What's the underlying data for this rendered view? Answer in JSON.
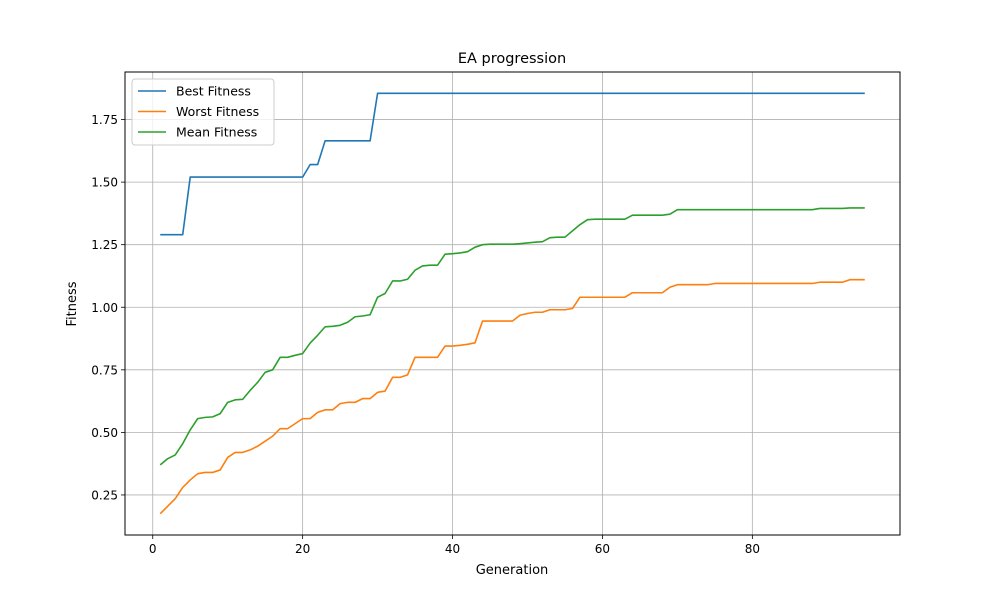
{
  "chart_data": {
    "type": "line",
    "title": "EA progression",
    "xlabel": "Generation",
    "ylabel": "Fitness",
    "xlim": [
      -3.7,
      99.7
    ],
    "ylim": [
      0.09,
      1.94
    ],
    "xticks": [
      0,
      20,
      40,
      60,
      80
    ],
    "yticks": [
      0.25,
      0.5,
      0.75,
      1.0,
      1.25,
      1.5,
      1.75
    ],
    "grid": true,
    "legend_position": "top-left",
    "series": [
      {
        "name": "Best Fitness",
        "color": "#1f77b4",
        "points": [
          [
            1,
            1.29
          ],
          [
            4,
            1.29
          ],
          [
            5,
            1.52
          ],
          [
            20,
            1.52
          ],
          [
            21,
            1.57
          ],
          [
            22,
            1.57
          ],
          [
            23,
            1.665
          ],
          [
            29,
            1.665
          ],
          [
            30,
            1.855
          ],
          [
            95,
            1.855
          ]
        ]
      },
      {
        "name": "Worst Fitness",
        "color": "#ff7f0e",
        "points": [
          [
            1,
            0.175
          ],
          [
            2,
            0.205
          ],
          [
            3,
            0.235
          ],
          [
            4,
            0.28
          ],
          [
            5,
            0.31
          ],
          [
            6,
            0.335
          ],
          [
            7,
            0.34
          ],
          [
            8,
            0.34
          ],
          [
            9,
            0.35
          ],
          [
            10,
            0.4
          ],
          [
            11,
            0.42
          ],
          [
            12,
            0.42
          ],
          [
            13,
            0.43
          ],
          [
            14,
            0.445
          ],
          [
            15,
            0.465
          ],
          [
            16,
            0.485
          ],
          [
            17,
            0.515
          ],
          [
            18,
            0.515
          ],
          [
            19,
            0.535
          ],
          [
            20,
            0.555
          ],
          [
            21,
            0.555
          ],
          [
            22,
            0.58
          ],
          [
            23,
            0.59
          ],
          [
            24,
            0.59
          ],
          [
            25,
            0.615
          ],
          [
            26,
            0.62
          ],
          [
            27,
            0.62
          ],
          [
            28,
            0.635
          ],
          [
            29,
            0.635
          ],
          [
            30,
            0.66
          ],
          [
            31,
            0.665
          ],
          [
            32,
            0.72
          ],
          [
            33,
            0.72
          ],
          [
            34,
            0.73
          ],
          [
            35,
            0.8
          ],
          [
            36,
            0.8
          ],
          [
            37,
            0.8
          ],
          [
            38,
            0.8
          ],
          [
            39,
            0.845
          ],
          [
            40,
            0.845
          ],
          [
            41,
            0.848
          ],
          [
            42,
            0.852
          ],
          [
            43,
            0.858
          ],
          [
            44,
            0.945
          ],
          [
            45,
            0.945
          ],
          [
            46,
            0.945
          ],
          [
            47,
            0.945
          ],
          [
            48,
            0.945
          ],
          [
            49,
            0.968
          ],
          [
            50,
            0.975
          ],
          [
            51,
            0.98
          ],
          [
            52,
            0.98
          ],
          [
            53,
            0.99
          ],
          [
            54,
            0.99
          ],
          [
            55,
            0.99
          ],
          [
            56,
            0.995
          ],
          [
            57,
            1.04
          ],
          [
            58,
            1.04
          ],
          [
            59,
            1.04
          ],
          [
            60,
            1.04
          ],
          [
            61,
            1.04
          ],
          [
            62,
            1.04
          ],
          [
            63,
            1.04
          ],
          [
            64,
            1.058
          ],
          [
            65,
            1.058
          ],
          [
            66,
            1.058
          ],
          [
            67,
            1.058
          ],
          [
            68,
            1.058
          ],
          [
            69,
            1.08
          ],
          [
            70,
            1.09
          ],
          [
            71,
            1.09
          ],
          [
            72,
            1.09
          ],
          [
            73,
            1.09
          ],
          [
            74,
            1.09
          ],
          [
            75,
            1.095
          ],
          [
            76,
            1.095
          ],
          [
            77,
            1.095
          ],
          [
            78,
            1.095
          ],
          [
            79,
            1.095
          ],
          [
            80,
            1.095
          ],
          [
            81,
            1.095
          ],
          [
            82,
            1.095
          ],
          [
            83,
            1.095
          ],
          [
            84,
            1.095
          ],
          [
            85,
            1.095
          ],
          [
            86,
            1.095
          ],
          [
            87,
            1.095
          ],
          [
            88,
            1.095
          ],
          [
            89,
            1.1
          ],
          [
            90,
            1.1
          ],
          [
            91,
            1.1
          ],
          [
            92,
            1.1
          ],
          [
            93,
            1.11
          ],
          [
            94,
            1.11
          ],
          [
            95,
            1.11
          ]
        ]
      },
      {
        "name": "Mean Fitness",
        "color": "#2ca02c",
        "points": [
          [
            1,
            0.37
          ],
          [
            2,
            0.395
          ],
          [
            3,
            0.41
          ],
          [
            4,
            0.455
          ],
          [
            5,
            0.51
          ],
          [
            6,
            0.555
          ],
          [
            7,
            0.56
          ],
          [
            8,
            0.562
          ],
          [
            9,
            0.575
          ],
          [
            10,
            0.62
          ],
          [
            11,
            0.63
          ],
          [
            12,
            0.632
          ],
          [
            13,
            0.668
          ],
          [
            14,
            0.7
          ],
          [
            15,
            0.74
          ],
          [
            16,
            0.75
          ],
          [
            17,
            0.8
          ],
          [
            18,
            0.8
          ],
          [
            19,
            0.808
          ],
          [
            20,
            0.815
          ],
          [
            21,
            0.857
          ],
          [
            22,
            0.888
          ],
          [
            23,
            0.922
          ],
          [
            24,
            0.924
          ],
          [
            25,
            0.928
          ],
          [
            26,
            0.94
          ],
          [
            27,
            0.962
          ],
          [
            28,
            0.965
          ],
          [
            29,
            0.97
          ],
          [
            30,
            1.04
          ],
          [
            31,
            1.055
          ],
          [
            32,
            1.105
          ],
          [
            33,
            1.105
          ],
          [
            34,
            1.112
          ],
          [
            35,
            1.148
          ],
          [
            36,
            1.165
          ],
          [
            37,
            1.168
          ],
          [
            38,
            1.168
          ],
          [
            39,
            1.212
          ],
          [
            40,
            1.214
          ],
          [
            41,
            1.217
          ],
          [
            42,
            1.222
          ],
          [
            43,
            1.24
          ],
          [
            44,
            1.25
          ],
          [
            45,
            1.252
          ],
          [
            46,
            1.252
          ],
          [
            47,
            1.252
          ],
          [
            48,
            1.252
          ],
          [
            49,
            1.254
          ],
          [
            50,
            1.257
          ],
          [
            51,
            1.26
          ],
          [
            52,
            1.262
          ],
          [
            53,
            1.278
          ],
          [
            54,
            1.28
          ],
          [
            55,
            1.28
          ],
          [
            56,
            1.305
          ],
          [
            57,
            1.33
          ],
          [
            58,
            1.35
          ],
          [
            59,
            1.352
          ],
          [
            60,
            1.352
          ],
          [
            61,
            1.352
          ],
          [
            62,
            1.352
          ],
          [
            63,
            1.352
          ],
          [
            64,
            1.368
          ],
          [
            65,
            1.368
          ],
          [
            66,
            1.368
          ],
          [
            67,
            1.368
          ],
          [
            68,
            1.368
          ],
          [
            69,
            1.372
          ],
          [
            70,
            1.39
          ],
          [
            71,
            1.39
          ],
          [
            72,
            1.39
          ],
          [
            73,
            1.39
          ],
          [
            74,
            1.39
          ],
          [
            75,
            1.39
          ],
          [
            76,
            1.39
          ],
          [
            77,
            1.39
          ],
          [
            78,
            1.39
          ],
          [
            79,
            1.39
          ],
          [
            80,
            1.39
          ],
          [
            81,
            1.39
          ],
          [
            82,
            1.39
          ],
          [
            83,
            1.39
          ],
          [
            84,
            1.39
          ],
          [
            85,
            1.39
          ],
          [
            86,
            1.39
          ],
          [
            87,
            1.39
          ],
          [
            88,
            1.39
          ],
          [
            89,
            1.395
          ],
          [
            90,
            1.395
          ],
          [
            91,
            1.395
          ],
          [
            92,
            1.395
          ],
          [
            93,
            1.397
          ],
          [
            94,
            1.397
          ],
          [
            95,
            1.397
          ]
        ]
      }
    ]
  }
}
